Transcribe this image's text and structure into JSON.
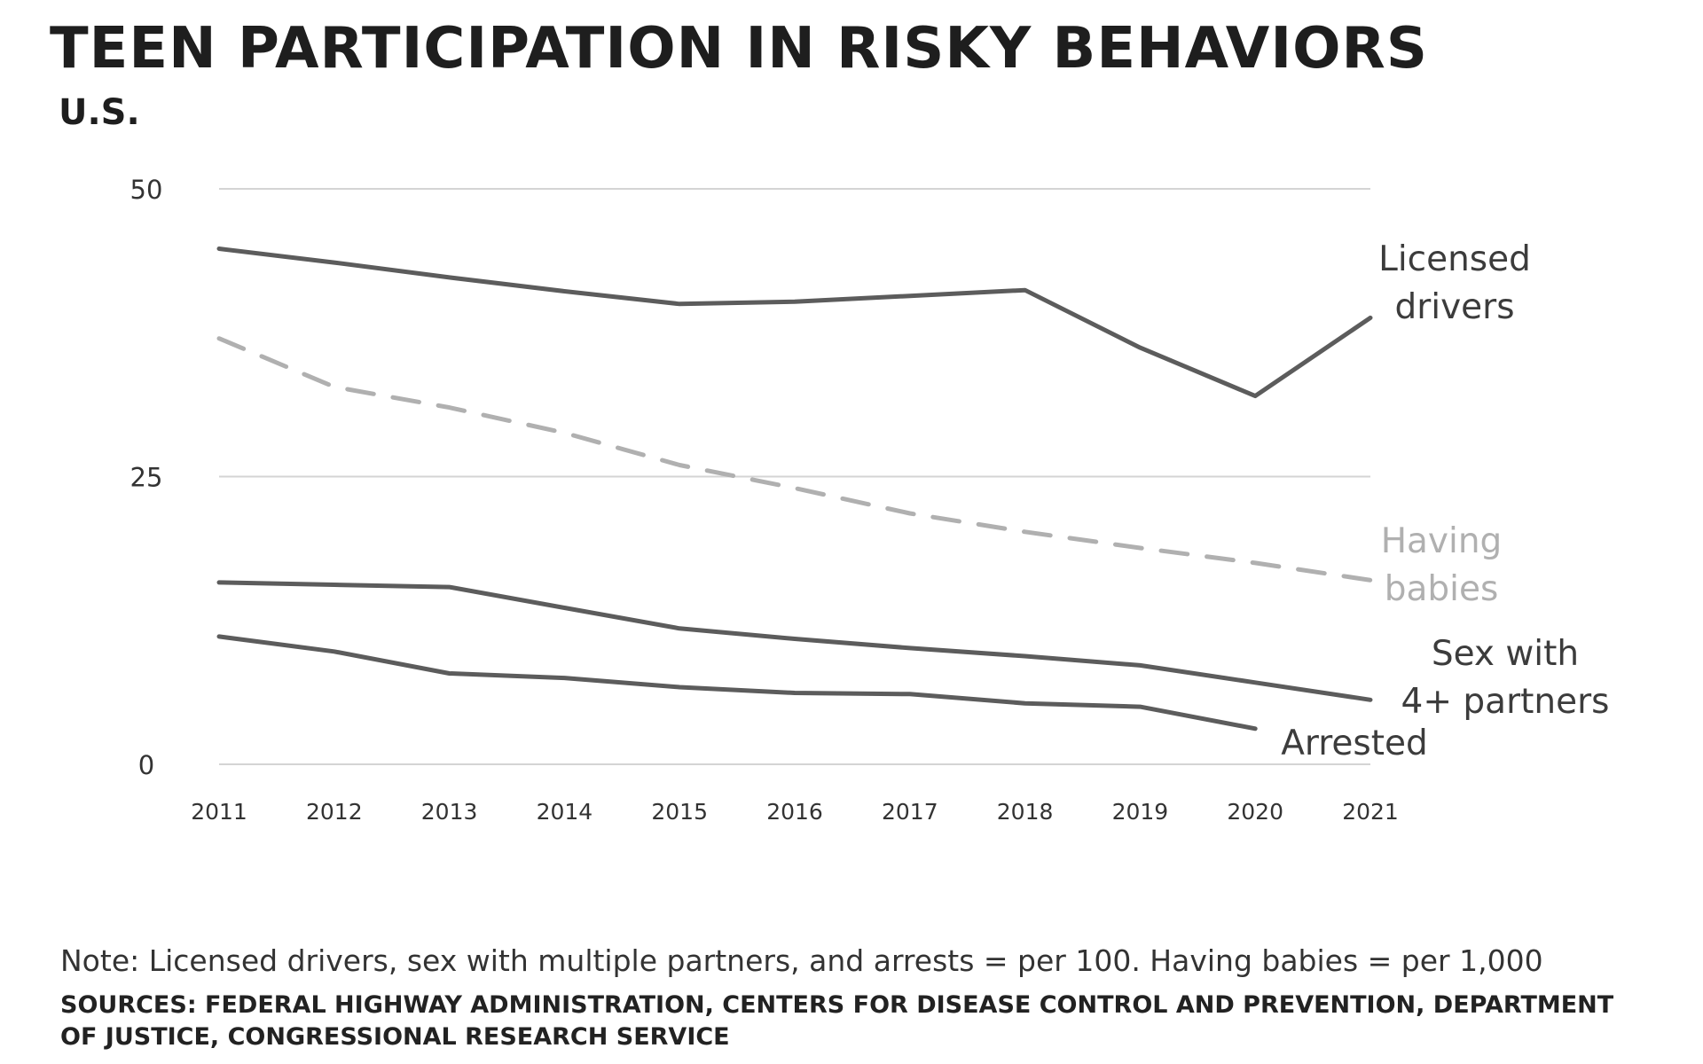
{
  "title": "TEEN PARTICIPATION IN RISKY BEHAVIORS",
  "subtitle": "U.S.",
  "note": "Note: Licensed drivers, sex with multiple partners, and arrests = per 100. Having babies = per 1,000",
  "sources": "SOURCES: FEDERAL HIGHWAY ADMINISTRATION, CENTERS FOR DISEASE CONTROL AND PREVENTION, DEPARTMENT OF JUSTICE, CONGRESSIONAL RESEARCH SERVICE",
  "chart_data": {
    "type": "line",
    "x": [
      2011,
      2012,
      2013,
      2014,
      2015,
      2016,
      2017,
      2018,
      2019,
      2020,
      2021
    ],
    "ylim": [
      0,
      50
    ],
    "y_ticks": [
      "0",
      "25",
      "50"
    ],
    "x_ticks": [
      "2011",
      "2012",
      "2013",
      "2014",
      "2015",
      "2016",
      "2017",
      "2018",
      "2019",
      "2020",
      "2021"
    ],
    "grid": "horizontal",
    "series": [
      {
        "name": "Licensed drivers",
        "label_lines": [
          "Licensed",
          "drivers"
        ],
        "values": [
          44.8,
          43.6,
          42.3,
          41.1,
          40.0,
          40.2,
          40.7,
          41.2,
          36.2,
          32.0,
          38.8
        ],
        "color": "#5c5c5c",
        "dashed": false
      },
      {
        "name": "Having babies",
        "label_lines": [
          "Having",
          "babies"
        ],
        "values": [
          37.0,
          32.8,
          31.0,
          28.8,
          26.0,
          24.0,
          21.8,
          20.2,
          18.8,
          17.5,
          16.0
        ],
        "color": "#b0b0b0",
        "dashed": true
      },
      {
        "name": "Sex with 4+ partners",
        "label_lines": [
          "Sex with",
          "4+ partners"
        ],
        "values": [
          15.8,
          15.6,
          15.4,
          13.6,
          11.8,
          10.9,
          10.1,
          9.4,
          8.6,
          7.1,
          5.6
        ],
        "color": "#5c5c5c",
        "dashed": false
      },
      {
        "name": "Arrested",
        "label_lines": [
          "Arrested"
        ],
        "values": [
          11.1,
          9.8,
          7.9,
          7.5,
          6.7,
          6.2,
          6.1,
          5.3,
          5.0,
          3.1,
          null
        ],
        "color": "#5c5c5c",
        "dashed": false
      }
    ]
  }
}
